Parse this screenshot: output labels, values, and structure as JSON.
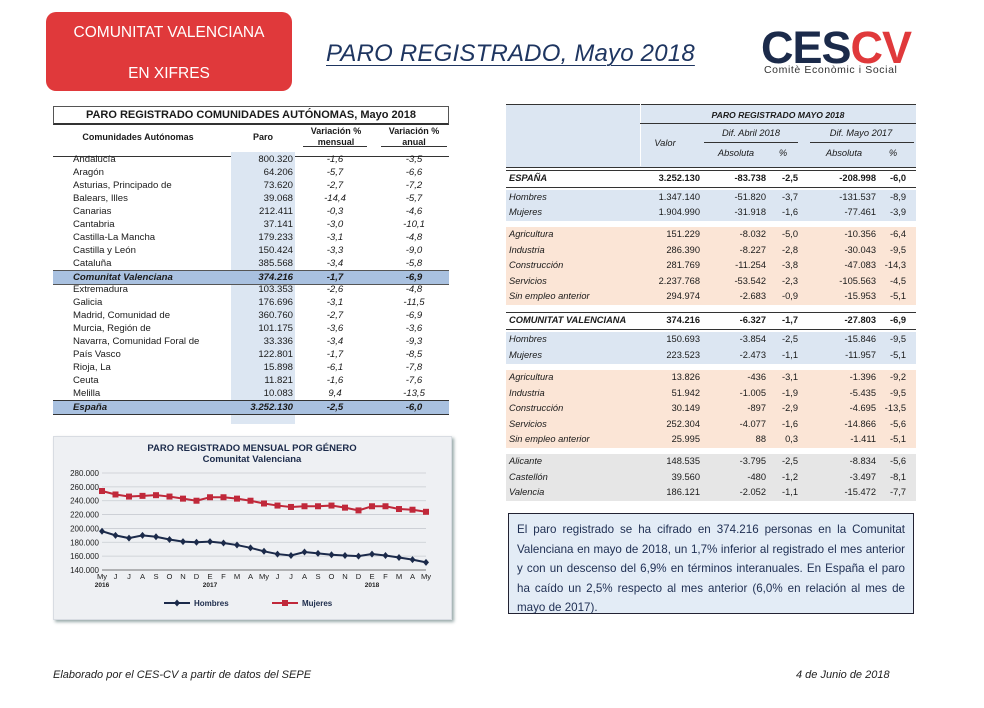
{
  "badge": {
    "line1": "COMUNITAT VALENCIANA",
    "line2": "EN XIFRES"
  },
  "title": "PARO REGISTRADO, Mayo 2018",
  "logo": {
    "word_a": "CES",
    "word_b": "CV",
    "sub": "Comitè Econòmic i Social"
  },
  "colors": {
    "accent_red": "#e0393b",
    "navy": "#1e3560",
    "highlight_blue": "#a9c1e0",
    "peach": "#fbe5d6",
    "blue_light": "#dce6f2",
    "gray_light": "#e6e6e6"
  },
  "left_table": {
    "caption": "PARO REGISTRADO COMUNIDADES AUTÓNOMAS, Mayo 2018",
    "headers": {
      "region": "Comunidades Autónomas",
      "paro": "Paro",
      "var_mensual": "Variación % mensual",
      "var_anual": "Variación % anual"
    },
    "rows": [
      {
        "name": "Andalucía",
        "paro": "800.320",
        "mensual": "-1,6",
        "anual": "-3,5"
      },
      {
        "name": "Aragón",
        "paro": "64.206",
        "mensual": "-5,7",
        "anual": "-6,6"
      },
      {
        "name": "Asturias, Principado de",
        "paro": "73.620",
        "mensual": "-2,7",
        "anual": "-7,2"
      },
      {
        "name": "Balears, Illes",
        "paro": "39.068",
        "mensual": "-14,4",
        "anual": "-5,7"
      },
      {
        "name": "Canarias",
        "paro": "212.411",
        "mensual": "-0,3",
        "anual": "-4,6"
      },
      {
        "name": "Cantabria",
        "paro": "37.141",
        "mensual": "-3,0",
        "anual": "-10,1"
      },
      {
        "name": "Castilla-La Mancha",
        "paro": "179.233",
        "mensual": "-3,1",
        "anual": "-4,8"
      },
      {
        "name": "Castilla y León",
        "paro": "150.424",
        "mensual": "-3,3",
        "anual": "-9,0"
      },
      {
        "name": "Cataluña",
        "paro": "385.568",
        "mensual": "-3,4",
        "anual": "-5,8"
      },
      {
        "name": "Comunitat Valenciana",
        "paro": "374.216",
        "mensual": "-1,7",
        "anual": "-6,9",
        "highlight": true
      },
      {
        "name": "Extremadura",
        "paro": "103.353",
        "mensual": "-2,6",
        "anual": "-4,8"
      },
      {
        "name": "Galicia",
        "paro": "176.696",
        "mensual": "-3,1",
        "anual": "-11,5"
      },
      {
        "name": "Madrid, Comunidad de",
        "paro": "360.760",
        "mensual": "-2,7",
        "anual": "-6,9"
      },
      {
        "name": "Murcia, Región de",
        "paro": "101.175",
        "mensual": "-3,6",
        "anual": "-3,6"
      },
      {
        "name": "Navarra, Comunidad Foral de",
        "paro": "33.336",
        "mensual": "-3,4",
        "anual": "-9,3"
      },
      {
        "name": "País Vasco",
        "paro": "122.801",
        "mensual": "-1,7",
        "anual": "-8,5"
      },
      {
        "name": "Rioja, La",
        "paro": "15.898",
        "mensual": "-6,1",
        "anual": "-7,8"
      },
      {
        "name": "Ceuta",
        "paro": "11.821",
        "mensual": "-1,6",
        "anual": "-7,6"
      },
      {
        "name": "Melilla",
        "paro": "10.083",
        "mensual": "9,4",
        "anual": "-13,5"
      },
      {
        "name": "España",
        "paro": "3.252.130",
        "mensual": "-2,5",
        "anual": "-6,0",
        "highlight": true
      }
    ]
  },
  "chart_data": {
    "type": "line",
    "title": "PARO REGISTRADO MENSUAL POR GÉNERO",
    "subtitle": "Comunitat Valenciana",
    "categories": [
      "My",
      "J",
      "J",
      "A",
      "S",
      "O",
      "N",
      "D",
      "E",
      "F",
      "M",
      "A",
      "My",
      "J",
      "J",
      "A",
      "S",
      "O",
      "N",
      "D",
      "E",
      "F",
      "M",
      "A",
      "My"
    ],
    "year_labels": [
      {
        "at": 0,
        "text": "2016"
      },
      {
        "at": 8,
        "text": "2017"
      },
      {
        "at": 20,
        "text": "2018"
      }
    ],
    "ylim": [
      140000,
      280000
    ],
    "yticks": [
      "140.000",
      "160.000",
      "180.000",
      "200.000",
      "220.000",
      "240.000",
      "260.000",
      "280.000"
    ],
    "series": [
      {
        "name": "Hombres",
        "color": "#1b2a4a",
        "marker": "diamond",
        "values": [
          196000,
          190000,
          186000,
          190000,
          188000,
          184000,
          181000,
          180000,
          181000,
          179000,
          176000,
          172000,
          167000,
          163000,
          161000,
          166000,
          164000,
          162000,
          161000,
          160000,
          163000,
          161000,
          158000,
          155000,
          151000
        ]
      },
      {
        "name": "Mujeres",
        "color": "#c0283a",
        "marker": "square",
        "values": [
          254000,
          249000,
          246000,
          247000,
          248000,
          246000,
          243000,
          240000,
          245000,
          245000,
          243000,
          240000,
          236000,
          233000,
          231000,
          232000,
          232000,
          233000,
          230000,
          226000,
          232000,
          232000,
          228000,
          227000,
          224000
        ]
      }
    ]
  },
  "right_table": {
    "title": "PARO REGISTRADO MAYO 2018",
    "headers": {
      "valor": "Valor",
      "dif_abril": "Dif. Abril 2018",
      "dif_mayo": "Dif. Mayo 2017",
      "absoluta": "Absoluta",
      "pct": "%"
    },
    "rows": [
      {
        "name": "ESPAÑA",
        "valor": "3.252.130",
        "a_abs": "-83.738",
        "a_pct": "-2,5",
        "m_abs": "-208.998",
        "m_pct": "-6,0",
        "style": "bold"
      },
      {
        "name": "Hombres",
        "valor": "1.347.140",
        "a_abs": "-51.820",
        "a_pct": "-3,7",
        "m_abs": "-131.537",
        "m_pct": "-8,9",
        "style": "blue"
      },
      {
        "name": "Mujeres",
        "valor": "1.904.990",
        "a_abs": "-31.918",
        "a_pct": "-1,6",
        "m_abs": "-77.461",
        "m_pct": "-3,9",
        "style": "blue"
      },
      {
        "name": "Agricultura",
        "valor": "151.229",
        "a_abs": "-8.032",
        "a_pct": "-5,0",
        "m_abs": "-10.356",
        "m_pct": "-6,4",
        "style": "peach"
      },
      {
        "name": "Industria",
        "valor": "286.390",
        "a_abs": "-8.227",
        "a_pct": "-2,8",
        "m_abs": "-30.043",
        "m_pct": "-9,5",
        "style": "peach"
      },
      {
        "name": "Construcción",
        "valor": "281.769",
        "a_abs": "-11.254",
        "a_pct": "-3,8",
        "m_abs": "-47.083",
        "m_pct": "-14,3",
        "style": "peach"
      },
      {
        "name": "Servicios",
        "valor": "2.237.768",
        "a_abs": "-53.542",
        "a_pct": "-2,3",
        "m_abs": "-105.563",
        "m_pct": "-4,5",
        "style": "peach"
      },
      {
        "name": "Sin empleo anterior",
        "valor": "294.974",
        "a_abs": "-2.683",
        "a_pct": "-0,9",
        "m_abs": "-15.953",
        "m_pct": "-5,1",
        "style": "peach"
      },
      {
        "name": "COMUNITAT VALENCIANA",
        "valor": "374.216",
        "a_abs": "-6.327",
        "a_pct": "-1,7",
        "m_abs": "-27.803",
        "m_pct": "-6,9",
        "style": "bold"
      },
      {
        "name": "Hombres",
        "valor": "150.693",
        "a_abs": "-3.854",
        "a_pct": "-2,5",
        "m_abs": "-15.846",
        "m_pct": "-9,5",
        "style": "blue"
      },
      {
        "name": "Mujeres",
        "valor": "223.523",
        "a_abs": "-2.473",
        "a_pct": "-1,1",
        "m_abs": "-11.957",
        "m_pct": "-5,1",
        "style": "blue"
      },
      {
        "name": "Agricultura",
        "valor": "13.826",
        "a_abs": "-436",
        "a_pct": "-3,1",
        "m_abs": "-1.396",
        "m_pct": "-9,2",
        "style": "peach"
      },
      {
        "name": "Industria",
        "valor": "51.942",
        "a_abs": "-1.005",
        "a_pct": "-1,9",
        "m_abs": "-5.435",
        "m_pct": "-9,5",
        "style": "peach"
      },
      {
        "name": "Construcción",
        "valor": "30.149",
        "a_abs": "-897",
        "a_pct": "-2,9",
        "m_abs": "-4.695",
        "m_pct": "-13,5",
        "style": "peach"
      },
      {
        "name": "Servicios",
        "valor": "252.304",
        "a_abs": "-4.077",
        "a_pct": "-1,6",
        "m_abs": "-14.866",
        "m_pct": "-5,6",
        "style": "peach"
      },
      {
        "name": "Sin empleo anterior",
        "valor": "25.995",
        "a_abs": "88",
        "a_pct": "0,3",
        "m_abs": "-1.411",
        "m_pct": "-5,1",
        "style": "peach"
      },
      {
        "name": "Alicante",
        "valor": "148.535",
        "a_abs": "-3.795",
        "a_pct": "-2,5",
        "m_abs": "-8.834",
        "m_pct": "-5,6",
        "style": "gray"
      },
      {
        "name": "Castellón",
        "valor": "39.560",
        "a_abs": "-480",
        "a_pct": "-1,2",
        "m_abs": "-3.497",
        "m_pct": "-8,1",
        "style": "gray"
      },
      {
        "name": "Valencia",
        "valor": "186.121",
        "a_abs": "-2.052",
        "a_pct": "-1,1",
        "m_abs": "-15.472",
        "m_pct": "-7,7",
        "style": "gray"
      }
    ]
  },
  "note": "El paro registrado se ha cifrado en 374.216 personas en la Comunitat Valenciana en mayo de 2018, un 1,7% inferior al registrado el mes anterior y con un descenso del 6,9% en términos interanuales. En España el paro ha caído un 2,5% respecto al mes anterior (6,0% en relación al mes de mayo de 2017).",
  "footer": {
    "source": "Elaborado por el CES-CV a partir de datos del SEPE",
    "date": "4 de Junio de 2018"
  }
}
